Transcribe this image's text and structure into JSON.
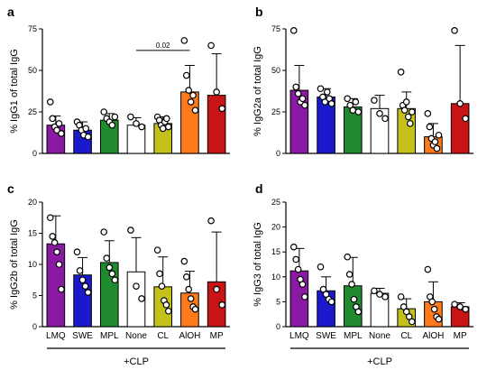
{
  "categories": [
    "LMQ",
    "SWE",
    "MPL",
    "None",
    "CL",
    "AlOH",
    "MP"
  ],
  "colors": {
    "LMQ": "#8a1aa3",
    "SWE": "#1a1acc",
    "MPL": "#1f8a2e",
    "None": "#ffffff",
    "CL": "#c4c21a",
    "AlOH": "#ff7a1a",
    "MP": "#c81414"
  },
  "group_label": "+CLP",
  "chart_data": [
    {
      "type": "bar",
      "panel": "a",
      "ylabel": "% IgG1 of total IgG",
      "ylim": [
        0,
        75
      ],
      "yticks": [
        0,
        25,
        50,
        75
      ],
      "categories": [
        "LMQ",
        "SWE",
        "MPL",
        "None",
        "CL",
        "AlOH",
        "MP"
      ],
      "values": [
        17,
        14,
        20,
        17,
        18,
        37,
        35
      ],
      "errors": [
        5.5,
        5,
        4,
        4.5,
        4,
        16,
        25
      ],
      "points": [
        [
          31,
          21,
          16,
          14,
          18,
          12
        ],
        [
          19,
          17,
          14,
          11,
          15,
          10
        ],
        [
          25,
          21,
          19,
          17,
          22
        ],
        [
          22,
          18,
          16
        ],
        [
          22,
          20,
          17,
          15,
          19,
          21,
          16
        ],
        [
          68,
          47,
          38,
          31,
          35,
          26
        ],
        [
          65,
          37,
          27
        ]
      ],
      "show_xlabels": false,
      "annotation": {
        "text": "0.02",
        "from": "None",
        "to": "AlOH",
        "y": 62
      }
    },
    {
      "type": "bar",
      "panel": "b",
      "ylabel": "% IgG2a of total IgG",
      "ylim": [
        0,
        75
      ],
      "yticks": [
        0,
        25,
        50,
        75
      ],
      "categories": [
        "LMQ",
        "SWE",
        "MPL",
        "None",
        "CL",
        "AlOH",
        "MP"
      ],
      "values": [
        38,
        34,
        28,
        27,
        27,
        10,
        30
      ],
      "errors": [
        15,
        5,
        5,
        8,
        10,
        8,
        35
      ],
      "points": [
        [
          74,
          40,
          36,
          31,
          33,
          29
        ],
        [
          39,
          34,
          31,
          37,
          33,
          30
        ],
        [
          33,
          29,
          26,
          31,
          25
        ],
        [
          32,
          24,
          21
        ],
        [
          49,
          29,
          26,
          31,
          22,
          18,
          25
        ],
        [
          24,
          16,
          9,
          5,
          7,
          3,
          11
        ],
        [
          74,
          30,
          21
        ]
      ],
      "show_xlabels": false
    },
    {
      "type": "bar",
      "panel": "c",
      "ylabel": "% IgG2b of total IgG",
      "ylim": [
        0,
        20
      ],
      "yticks": [
        0,
        5,
        10,
        15,
        20
      ],
      "categories": [
        "LMQ",
        "SWE",
        "MPL",
        "None",
        "CL",
        "AlOH",
        "MP"
      ],
      "values": [
        13.3,
        8.3,
        10.3,
        8.8,
        6.4,
        5.4,
        7.2
      ],
      "errors": [
        4.5,
        2.8,
        3.5,
        5.5,
        4.8,
        3.5,
        8
      ],
      "points": [
        [
          17.5,
          14.5,
          13.5,
          12,
          10,
          6
        ],
        [
          12,
          9,
          7.5,
          6.5,
          5.5
        ],
        [
          15.2,
          11,
          9.5,
          8.5,
          7.5
        ],
        [
          15.5,
          6.5,
          4.5
        ],
        [
          12.3,
          8.5,
          6.5,
          4.2,
          3.5,
          2.5
        ],
        [
          10.5,
          8,
          6,
          4.5,
          3.2,
          2.8
        ],
        [
          17,
          6,
          3.5
        ]
      ],
      "show_xlabels": true
    },
    {
      "type": "bar",
      "panel": "d",
      "ylabel": "% IgG3 of total IgG",
      "ylim": [
        0,
        25
      ],
      "yticks": [
        0,
        5,
        10,
        15,
        20,
        25
      ],
      "categories": [
        "LMQ",
        "SWE",
        "MPL",
        "None",
        "CL",
        "AlOH",
        "MP"
      ],
      "values": [
        11.2,
        7.2,
        8.2,
        6.7,
        3.6,
        5,
        4
      ],
      "errors": [
        4.5,
        2.8,
        5.7,
        1,
        2,
        4,
        0.8
      ],
      "points": [
        [
          16,
          13.5,
          11.5,
          9.5,
          8.5,
          6
        ],
        [
          12,
          7.5,
          6.5,
          5.5,
          5
        ],
        [
          14,
          10.5,
          8.5,
          5.5,
          4,
          3
        ],
        [
          7.2,
          6.5,
          6
        ],
        [
          6,
          4,
          3,
          2,
          1
        ],
        [
          11.5,
          6,
          5,
          3.5,
          2,
          1.5
        ],
        [
          4.5,
          4,
          3.5
        ]
      ],
      "show_xlabels": true
    }
  ]
}
